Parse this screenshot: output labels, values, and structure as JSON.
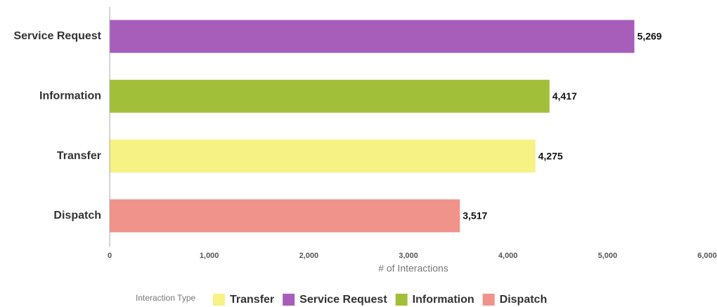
{
  "chart_data": {
    "type": "hbar",
    "categories": [
      "Service Request",
      "Information",
      "Transfer",
      "Dispatch"
    ],
    "values": [
      5269,
      4417,
      4275,
      3517
    ],
    "value_labels": [
      "5,269",
      "4,417",
      "4,275",
      "3,517"
    ],
    "colors": [
      "#a75ebb",
      "#a2bf3a",
      "#f6f283",
      "#f0938b"
    ],
    "xlabel": "# of Interactions",
    "xlim": [
      0,
      6000
    ],
    "xticks": [
      0,
      {
        "value": 1000,
        "label": "1,000"
      },
      {
        "value": 2000,
        "label": "2,000"
      },
      {
        "value": 3000,
        "label": "3,000"
      },
      {
        "value": 4000,
        "label": "4,000"
      },
      {
        "value": 5000,
        "label": "5,000"
      },
      {
        "value": 6000,
        "label": "6,000"
      }
    ],
    "legend": {
      "title": "Interaction Type",
      "position": "bottom",
      "entries": [
        {
          "name": "Transfer",
          "color": "#f6f283"
        },
        {
          "name": "Service Request",
          "color": "#a75ebb"
        },
        {
          "name": "Information",
          "color": "#a2bf3a"
        },
        {
          "name": "Dispatch",
          "color": "#f0938b"
        }
      ]
    }
  }
}
